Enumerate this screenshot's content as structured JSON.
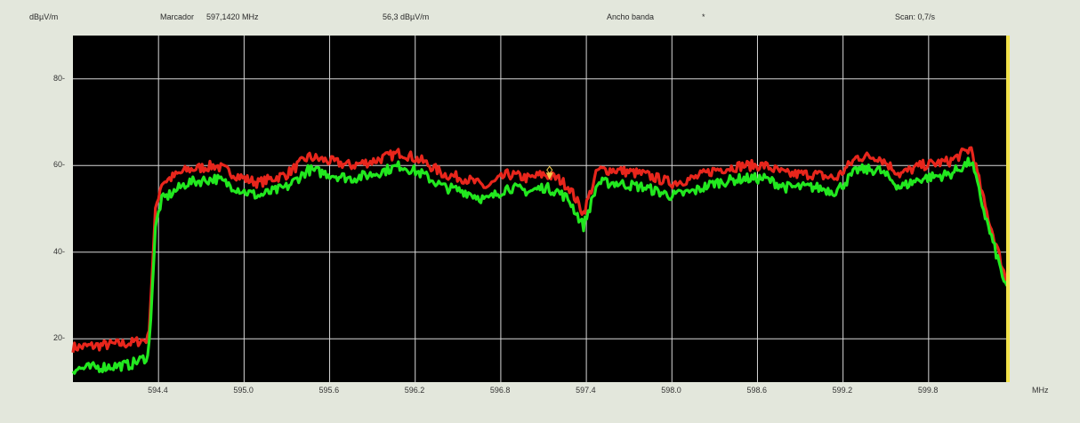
{
  "header": {
    "unit": "dBµV/m",
    "marker_label": "Marcador",
    "marker_freq": "597,1420 MHz",
    "marker_level": "56,3 dBµV/m",
    "bandwidth_label": "Ancho banda",
    "bandwidth_value": "*",
    "scan_rate": "Scan: 0,7/s"
  },
  "x_unit": "MHz",
  "colors": {
    "background": "#000000",
    "grid": "#d8d8d8",
    "trace_max": "#e8261c",
    "trace_min": "#22e81f",
    "marker": "#f0c84a",
    "axis_edge": "#f2e24a"
  },
  "chart_data": {
    "type": "line",
    "title": "",
    "xlabel": "MHz",
    "ylabel": "dBµV/m",
    "xlim": [
      593.8,
      600.35
    ],
    "ylim": [
      10,
      90
    ],
    "x_ticks": [
      "594.4",
      "595.0",
      "595.6",
      "596.2",
      "596.8",
      "597.4",
      "598.0",
      "598.6",
      "599.2",
      "599.8"
    ],
    "y_ticks": [
      "20",
      "40",
      "60",
      "80"
    ],
    "grid": true,
    "marker": {
      "x": 597.142,
      "y": 56.3
    },
    "series": [
      {
        "color": "red",
        "x": [
          593.8,
          594.2,
          594.33,
          594.38,
          594.42,
          594.6,
          594.8,
          595.0,
          595.1,
          595.3,
          595.45,
          595.6,
          595.75,
          595.9,
          596.1,
          596.25,
          596.4,
          596.55,
          596.7,
          596.85,
          597.0,
          597.1,
          597.2,
          597.28,
          597.38,
          597.48,
          597.6,
          597.8,
          598.0,
          598.15,
          598.3,
          598.5,
          598.65,
          598.8,
          599.0,
          599.15,
          599.3,
          599.45,
          599.6,
          599.75,
          599.95,
          600.1,
          600.2,
          600.35
        ],
        "y": [
          18,
          19,
          20,
          50,
          56,
          59,
          60,
          57,
          56,
          58,
          62,
          61,
          60,
          61,
          63,
          61,
          58,
          57,
          55,
          58,
          57,
          58,
          57,
          55,
          49,
          59,
          59,
          58,
          56,
          57,
          59,
          60,
          60,
          58,
          58,
          57,
          62,
          62,
          58,
          60,
          61,
          64,
          50,
          33
        ]
      },
      {
        "color": "green",
        "x": [
          593.8,
          594.2,
          594.33,
          594.38,
          594.42,
          594.6,
          594.8,
          595.0,
          595.1,
          595.3,
          595.45,
          595.6,
          595.75,
          595.9,
          596.1,
          596.25,
          596.4,
          596.55,
          596.7,
          596.85,
          597.0,
          597.1,
          597.2,
          597.28,
          597.38,
          597.48,
          597.6,
          597.8,
          598.0,
          598.15,
          598.3,
          598.5,
          598.65,
          598.8,
          599.0,
          599.15,
          599.3,
          599.45,
          599.6,
          599.75,
          599.95,
          600.1,
          600.2,
          600.35
        ],
        "y": [
          13,
          14,
          16,
          46,
          52,
          56,
          57,
          54,
          53,
          55,
          59,
          58,
          57,
          58,
          60,
          58,
          55,
          54,
          52,
          55,
          54,
          55,
          54,
          52,
          46,
          56,
          56,
          55,
          53,
          54,
          56,
          57,
          57,
          55,
          55,
          54,
          59,
          59,
          55,
          57,
          58,
          61,
          48,
          31
        ]
      }
    ]
  }
}
